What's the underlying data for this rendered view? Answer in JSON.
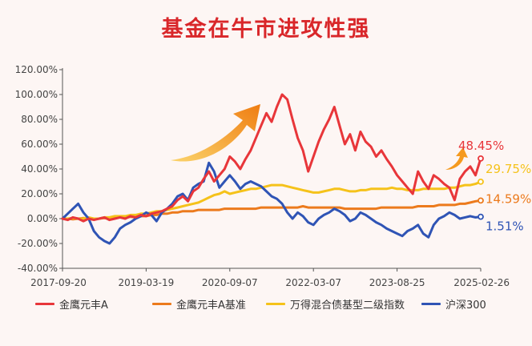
{
  "page": {
    "title": "基金在牛市进攻性强"
  },
  "colors": {
    "fund": "#e8363a",
    "benchmark": "#ec7a1c",
    "bond_index": "#f5c21a",
    "csi300": "#2f54b5",
    "title": "#d9272a",
    "arrow": "#f59a1e",
    "axis": "#555555"
  },
  "chart_data": {
    "type": "line",
    "title": "基金在牛市进攻性强",
    "xlabel": "",
    "ylabel": "",
    "ylim": [
      -40,
      120
    ],
    "y_ticks": [
      -40,
      -20,
      0,
      20,
      40,
      60,
      80,
      100,
      120
    ],
    "y_tick_labels": [
      "-40.00%",
      "-20.00%",
      "0.00%",
      "20.00%",
      "40.00%",
      "60.00%",
      "80.00%",
      "100.00%",
      "120.00%"
    ],
    "x_tick_labels": [
      "2017-09-20",
      "2019-03-19",
      "2020-09-07",
      "2022-03-07",
      "2023-08-25",
      "2025-02-26"
    ],
    "grid": false,
    "legend_position": "bottom",
    "series": [
      {
        "name": "金鹰元丰A",
        "color_key": "fund",
        "end_label": "48.45%",
        "values": [
          0,
          -1,
          1,
          0,
          -2,
          0,
          -1,
          0,
          1,
          -1,
          0,
          1,
          0,
          2,
          1,
          3,
          2,
          4,
          5,
          6,
          8,
          10,
          15,
          18,
          14,
          22,
          25,
          32,
          38,
          30,
          35,
          40,
          50,
          46,
          40,
          48,
          55,
          65,
          75,
          85,
          78,
          90,
          100,
          96,
          80,
          65,
          55,
          38,
          50,
          62,
          72,
          80,
          90,
          75,
          60,
          68,
          55,
          70,
          62,
          58,
          50,
          55,
          48,
          42,
          35,
          30,
          25,
          20,
          38,
          30,
          24,
          35,
          32,
          28,
          25,
          15,
          32,
          38,
          42,
          35,
          48.45
        ]
      },
      {
        "name": "金鹰元丰A基准",
        "color_key": "benchmark",
        "end_label": "14.59%",
        "values": [
          0,
          0,
          -0.5,
          0,
          0.5,
          0,
          -0.5,
          0,
          0.5,
          0,
          1,
          1,
          0.5,
          1.5,
          1,
          2,
          2,
          3,
          3,
          4,
          4,
          5,
          5,
          6,
          6,
          6,
          7,
          7,
          7,
          7,
          7,
          8,
          8,
          8,
          8,
          8,
          8,
          8,
          9,
          9,
          9,
          9,
          9,
          9,
          9,
          9,
          10,
          9,
          9,
          9,
          9,
          9,
          9,
          9,
          8,
          8,
          8,
          8,
          8,
          8,
          8,
          9,
          9,
          9,
          9,
          9,
          9,
          9,
          10,
          10,
          10,
          10,
          11,
          11,
          11,
          11,
          12,
          12,
          13,
          14,
          14.59
        ]
      },
      {
        "name": "万得混合债基型二级指数",
        "color_key": "bond_index",
        "end_label": "29.75%",
        "values": [
          0,
          0,
          0.5,
          0,
          0,
          1,
          0,
          0,
          1,
          1,
          2,
          2,
          2,
          3,
          3,
          4,
          4,
          5,
          6,
          6,
          7,
          8,
          9,
          10,
          11,
          12,
          13,
          15,
          17,
          19,
          20,
          22,
          20,
          21,
          22,
          23,
          24,
          24,
          25,
          26,
          27,
          27,
          27,
          26,
          25,
          24,
          23,
          22,
          21,
          21,
          22,
          23,
          24,
          24,
          23,
          22,
          22,
          23,
          23,
          24,
          24,
          24,
          24,
          25,
          24,
          24,
          23,
          23,
          23,
          24,
          24,
          24,
          24,
          24,
          25,
          25,
          26,
          27,
          27,
          28,
          29.75
        ]
      },
      {
        "name": "沪深300",
        "color_key": "csi300",
        "end_label": "1.51%",
        "values": [
          0,
          4,
          8,
          12,
          5,
          0,
          -10,
          -15,
          -18,
          -20,
          -15,
          -8,
          -5,
          -3,
          0,
          2,
          5,
          3,
          -2,
          5,
          8,
          12,
          18,
          20,
          15,
          25,
          28,
          30,
          45,
          38,
          25,
          30,
          35,
          30,
          24,
          28,
          30,
          28,
          26,
          22,
          18,
          16,
          12,
          5,
          0,
          5,
          2,
          -3,
          -5,
          0,
          3,
          5,
          8,
          6,
          3,
          -2,
          0,
          5,
          3,
          0,
          -3,
          -5,
          -8,
          -10,
          -12,
          -14,
          -10,
          -8,
          -5,
          -12,
          -15,
          -5,
          0,
          2,
          5,
          3,
          0,
          1,
          2,
          1,
          1.51
        ]
      }
    ]
  }
}
